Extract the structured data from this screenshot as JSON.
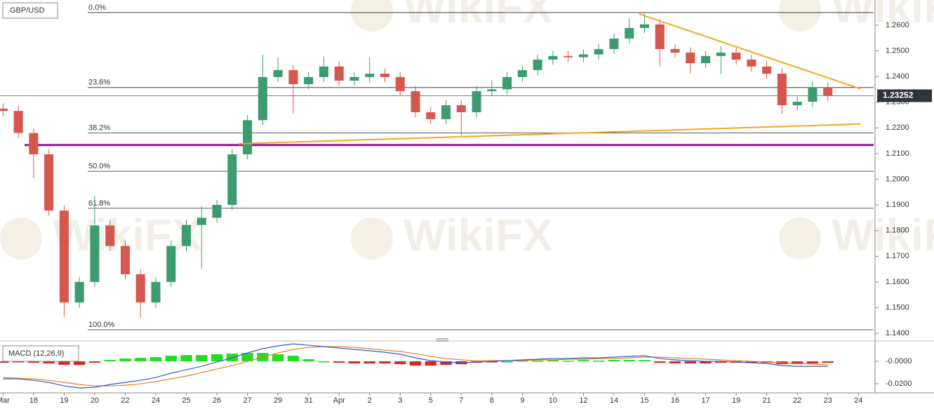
{
  "chart_data": [
    {
      "type": "candlestick",
      "title": "GBP/USD",
      "watermark": "WikiFX",
      "up_color": "#3c9b6f",
      "down_color": "#d6574e",
      "x": [
        0,
        0.5,
        1,
        1.5,
        2,
        2.5,
        3,
        3.5,
        4,
        4.5,
        5,
        5.5,
        6,
        6.5,
        7,
        7.5,
        8,
        8.5,
        9,
        9.5,
        10,
        10.5,
        11,
        11.5,
        12,
        12.5,
        13,
        13.5,
        14,
        14.5,
        15,
        15.5,
        16,
        16.5,
        17,
        17.5,
        18,
        18.5,
        19,
        19.5,
        20,
        20.5,
        21,
        21.5,
        22,
        22.5,
        23,
        23.5,
        24,
        24.5,
        25,
        25.5,
        26,
        26.5,
        27
      ],
      "open": [
        1.2275,
        1.2266,
        1.218,
        1.2097,
        1.1878,
        1.152,
        1.16,
        1.182,
        1.174,
        1.163,
        1.152,
        1.16,
        1.174,
        1.1822,
        1.185,
        1.19,
        1.2097,
        1.223,
        1.2398,
        1.2425,
        1.237,
        1.2398,
        1.2439,
        1.2384,
        1.2398,
        1.2411,
        1.2398,
        1.2343,
        1.2261,
        1.2234,
        1.2288,
        1.2261,
        1.2343,
        1.235,
        1.2398,
        1.2425,
        1.2466,
        1.248,
        1.2475,
        1.2486,
        1.2507,
        1.2548,
        1.2589,
        1.2603,
        1.2507,
        1.2493,
        1.2452,
        1.248,
        1.2493,
        1.2466,
        1.2439,
        1.2411,
        1.2288,
        1.2302,
        1.2357
      ],
      "high": [
        1.2295,
        1.2286,
        1.22,
        1.2117,
        1.1898,
        1.162,
        1.1935,
        1.184,
        1.176,
        1.165,
        1.162,
        1.176,
        1.1842,
        1.1895,
        1.192,
        1.2117,
        1.225,
        1.2485,
        1.2475,
        1.2445,
        1.2418,
        1.2478,
        1.2459,
        1.2418,
        1.2475,
        1.2431,
        1.2418,
        1.2363,
        1.2281,
        1.2308,
        1.2308,
        1.2363,
        1.2385,
        1.2418,
        1.2445,
        1.2486,
        1.25,
        1.25,
        1.2506,
        1.2527,
        1.2568,
        1.2625,
        1.2645,
        1.2623,
        1.2527,
        1.2513,
        1.25,
        1.2518,
        1.2513,
        1.2486,
        1.2459,
        1.2431,
        1.2322,
        1.238,
        1.2377
      ],
      "low": [
        1.2245,
        1.216,
        1.2005,
        1.1858,
        1.1465,
        1.15,
        1.158,
        1.172,
        1.161,
        1.146,
        1.15,
        1.158,
        1.172,
        1.165,
        1.183,
        1.188,
        1.2077,
        1.221,
        1.2378,
        1.2255,
        1.235,
        1.2378,
        1.2364,
        1.2364,
        1.2378,
        1.2378,
        1.2323,
        1.2241,
        1.2214,
        1.2214,
        1.217,
        1.2241,
        1.2323,
        1.233,
        1.2378,
        1.2405,
        1.2446,
        1.2455,
        1.2455,
        1.2466,
        1.2487,
        1.2528,
        1.2569,
        1.244,
        1.2473,
        1.2412,
        1.2432,
        1.241,
        1.2446,
        1.2419,
        1.2391,
        1.2255,
        1.2268,
        1.2282,
        1.2305
      ],
      "close": [
        1.2266,
        1.218,
        1.2097,
        1.1878,
        1.152,
        1.16,
        1.182,
        1.174,
        1.163,
        1.152,
        1.16,
        1.174,
        1.1822,
        1.185,
        1.19,
        1.2097,
        1.223,
        1.2398,
        1.2425,
        1.237,
        1.2398,
        1.2439,
        1.2384,
        1.2398,
        1.2411,
        1.2398,
        1.2343,
        1.2261,
        1.2234,
        1.2288,
        1.2261,
        1.2343,
        1.235,
        1.2398,
        1.2425,
        1.2466,
        1.248,
        1.2475,
        1.2486,
        1.2507,
        1.2548,
        1.2589,
        1.2603,
        1.2507,
        1.2493,
        1.2452,
        1.248,
        1.2493,
        1.2466,
        1.2439,
        1.2411,
        1.2288,
        1.2302,
        1.2357,
        1.2325
      ],
      "xlim": [
        -0.1,
        28.5
      ],
      "ylim": [
        1.1373,
        1.2698
      ],
      "yticks": [
        {
          "value": 1.26,
          "label": "1.2600"
        },
        {
          "value": 1.25,
          "label": "1.2500"
        },
        {
          "value": 1.24,
          "label": "1.2400"
        },
        {
          "value": 1.23,
          "label": "1.2300"
        },
        {
          "value": 1.22,
          "label": "1.2200"
        },
        {
          "value": 1.21,
          "label": "1.2100"
        },
        {
          "value": 1.2,
          "label": "1.2000"
        },
        {
          "value": 1.19,
          "label": "1.1900"
        },
        {
          "value": 1.18,
          "label": "1.1800"
        },
        {
          "value": 1.17,
          "label": "1.1700"
        },
        {
          "value": 1.16,
          "label": "1.1600"
        },
        {
          "value": 1.15,
          "label": "1.1500"
        },
        {
          "value": 1.14,
          "label": "1.1400"
        }
      ],
      "fib_levels": [
        {
          "label": "0.0%",
          "value": 1.2649
        },
        {
          "label": "23.6%",
          "value": 1.2357
        },
        {
          "label": "38.2%",
          "value": 1.218
        },
        {
          "label": "50.0%",
          "value": 1.2031
        },
        {
          "label": "61.8%",
          "value": 1.1887
        },
        {
          "label": "100.0%",
          "value": 1.1414
        }
      ],
      "support_level": 1.2133,
      "support_color": "#8e1a8e",
      "trendlines": [
        {
          "x": [
            20.82,
            28.07
          ],
          "y": [
            1.2644,
            1.2352
          ],
          "color": "#f5a623"
        },
        {
          "x": [
            7.71,
            28.07
          ],
          "y": [
            1.2138,
            1.2215
          ],
          "color": "#f5a623"
        }
      ],
      "last_price": 1.23252
    },
    {
      "type": "macd",
      "title": "MACD (12,26,9)",
      "x": [
        0,
        0.5,
        1,
        1.5,
        2,
        2.5,
        3,
        3.5,
        4,
        4.5,
        5,
        5.5,
        6,
        6.5,
        7,
        7.5,
        8,
        8.5,
        9,
        9.5,
        10,
        10.5,
        11,
        11.5,
        12,
        12.5,
        13,
        13.5,
        14,
        14.5,
        15,
        15.5,
        16,
        16.5,
        17,
        17.5,
        18,
        18.5,
        19,
        19.5,
        20,
        20.5,
        21,
        21.5,
        22,
        22.5,
        23,
        23.5,
        24,
        24.5,
        25,
        25.5,
        26,
        26.5,
        27
      ],
      "macd": [
        -0.0156,
        -0.0156,
        -0.0169,
        -0.0188,
        -0.0219,
        -0.0238,
        -0.0231,
        -0.0206,
        -0.0188,
        -0.0169,
        -0.0144,
        -0.0106,
        -0.0075,
        -0.0044,
        -0.0006,
        0.0031,
        0.0075,
        0.0113,
        0.0138,
        0.0156,
        0.0144,
        0.0131,
        0.0119,
        0.0106,
        0.0094,
        0.0081,
        0.0063,
        0.0031,
        0.0006,
        -0.0006,
        -0.0013,
        -0.0006,
        0,
        0.0006,
        0.0013,
        0.0019,
        0.0025,
        0.0025,
        0.0031,
        0.0031,
        0.0038,
        0.0044,
        0.005,
        0.0025,
        0.0013,
        0.0006,
        0,
        0,
        -0.0006,
        -0.0013,
        -0.0019,
        -0.0038,
        -0.0044,
        -0.0044,
        -0.0044
      ],
      "signal": [
        -0.0144,
        -0.015,
        -0.0156,
        -0.0169,
        -0.0188,
        -0.0206,
        -0.0219,
        -0.0219,
        -0.0213,
        -0.02,
        -0.0181,
        -0.0156,
        -0.0131,
        -0.01,
        -0.0069,
        -0.0038,
        0,
        0.0038,
        0.0075,
        0.0106,
        0.0125,
        0.0131,
        0.0131,
        0.0125,
        0.0113,
        0.01,
        0.0088,
        0.0069,
        0.0044,
        0.0025,
        0.0013,
        0.0006,
        0.0006,
        0.0006,
        0.0006,
        0.0013,
        0.0013,
        0.0019,
        0.0019,
        0.0025,
        0.0025,
        0.0031,
        0.0038,
        0.0038,
        0.0031,
        0.0025,
        0.0019,
        0.0013,
        0.0006,
        0,
        -0.0006,
        -0.0013,
        -0.0019,
        -0.0025,
        -0.0031
      ],
      "histogram": [
        -0.0012,
        -0.0006,
        -0.0013,
        -0.0019,
        -0.0031,
        -0.0032,
        -0.0012,
        0.0013,
        0.0025,
        0.0031,
        0.0037,
        0.005,
        0.0056,
        0.0056,
        0.0063,
        0.0069,
        0.0075,
        0.0075,
        0.0063,
        0.005,
        0.0019,
        0,
        -0.0012,
        -0.0019,
        -0.0019,
        -0.0019,
        -0.0025,
        -0.0038,
        -0.0038,
        -0.0031,
        -0.0026,
        -0.0012,
        -0.0006,
        0,
        0.0007,
        0.0006,
        0.0012,
        0.0006,
        0.0012,
        0.0006,
        0.0013,
        0.0013,
        0.0012,
        -0.0013,
        -0.0018,
        -0.0019,
        -0.0019,
        -0.0013,
        -0.0012,
        -0.0013,
        -0.0013,
        -0.0025,
        -0.0025,
        -0.0019,
        -0.0013
      ],
      "macd_color": "#2a5bd7",
      "signal_color": "#f07c1e",
      "hist_up_color": "#22dd22",
      "hist_down_color": "#dd2222",
      "xlim": [
        -0.1,
        28.5
      ],
      "ylim": [
        -0.0281,
        0.0163
      ],
      "yticks": [
        {
          "value": 0,
          "label": "-0.0000"
        },
        {
          "value": -0.02,
          "label": "-0.0200"
        }
      ],
      "xticks": [
        {
          "value": 0,
          "label": "Mar"
        },
        {
          "value": 1,
          "label": "18"
        },
        {
          "value": 2,
          "label": "19"
        },
        {
          "value": 3,
          "label": "20"
        },
        {
          "value": 4,
          "label": "22"
        },
        {
          "value": 5,
          "label": "24"
        },
        {
          "value": 6,
          "label": "25"
        },
        {
          "value": 7,
          "label": "26"
        },
        {
          "value": 8,
          "label": "27"
        },
        {
          "value": 9,
          "label": "29"
        },
        {
          "value": 10,
          "label": "31"
        },
        {
          "value": 11,
          "label": "Apr"
        },
        {
          "value": 12,
          "label": "2"
        },
        {
          "value": 13,
          "label": "3"
        },
        {
          "value": 14,
          "label": "5"
        },
        {
          "value": 15,
          "label": "7"
        },
        {
          "value": 16,
          "label": "8"
        },
        {
          "value": 17,
          "label": "9"
        },
        {
          "value": 18,
          "label": "10"
        },
        {
          "value": 19,
          "label": "12"
        },
        {
          "value": 20,
          "label": "14"
        },
        {
          "value": 21,
          "label": "15"
        },
        {
          "value": 22,
          "label": "16"
        },
        {
          "value": 23,
          "label": "17"
        },
        {
          "value": 24,
          "label": "19"
        },
        {
          "value": 25,
          "label": "21"
        },
        {
          "value": 26,
          "label": "22"
        },
        {
          "value": 27,
          "label": "23"
        },
        {
          "value": 28,
          "label": "24"
        }
      ]
    }
  ]
}
